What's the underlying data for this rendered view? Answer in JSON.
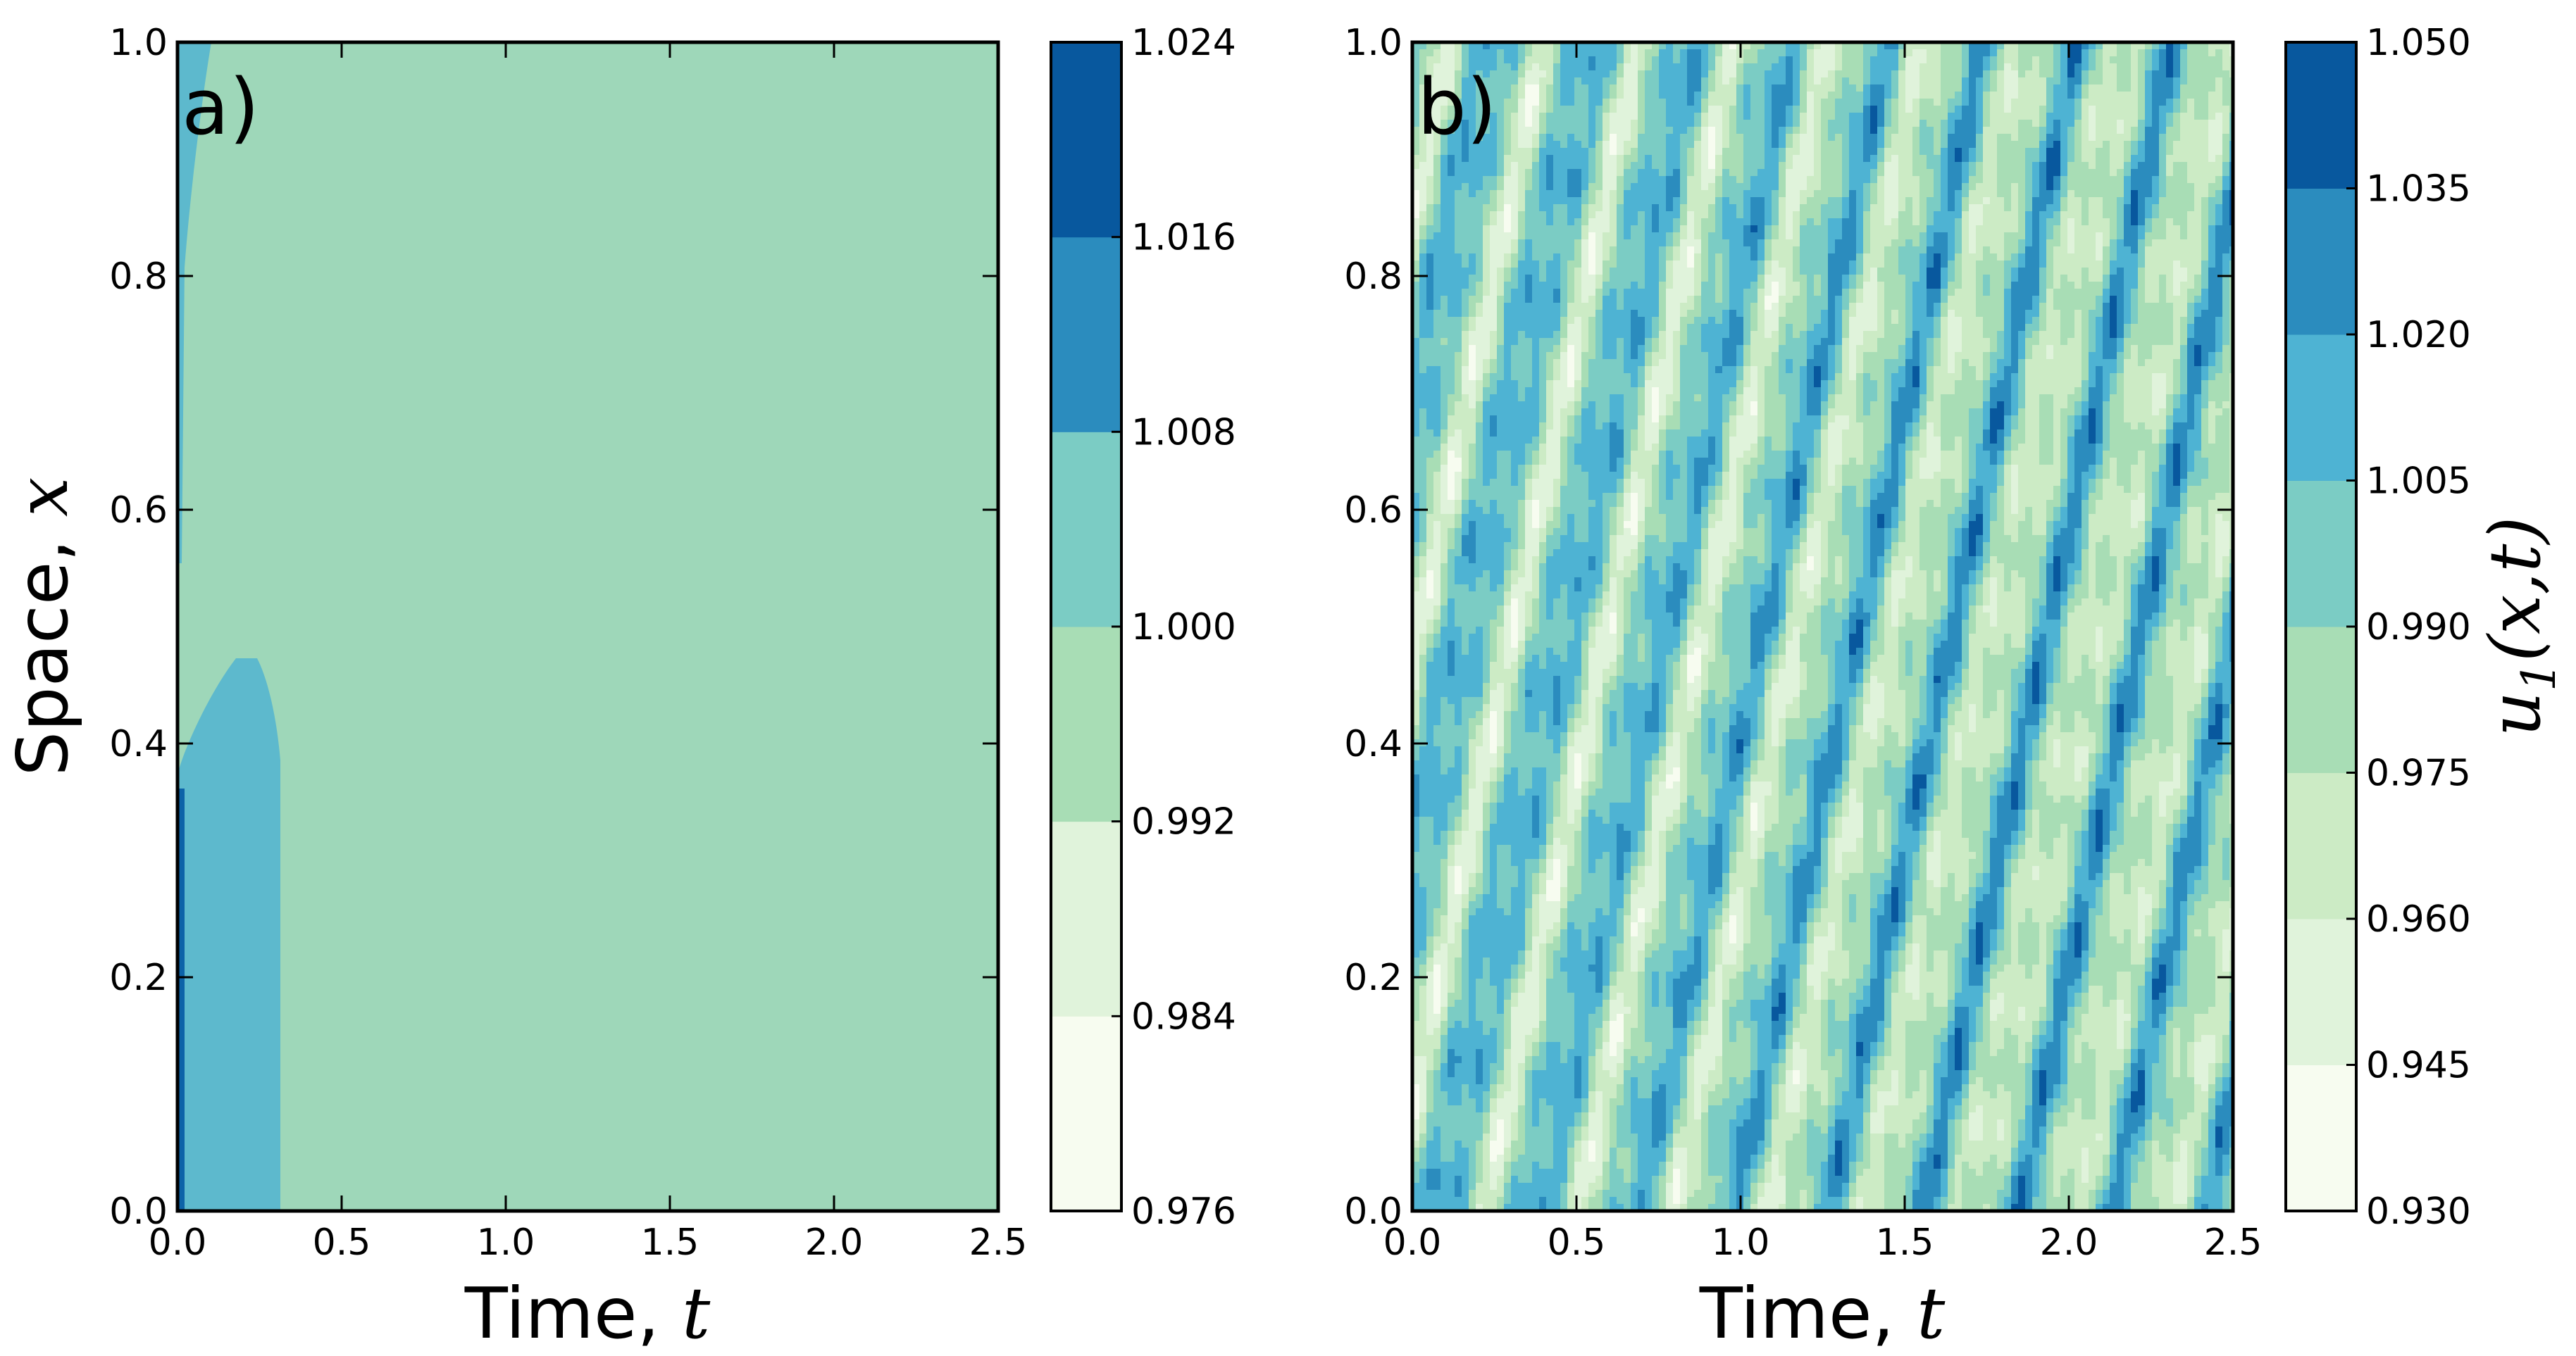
{
  "colors": {
    "levels": [
      "#f7fcf0",
      "#e0f3db",
      "#ccebc5",
      "#a8ddb5",
      "#7bccc4",
      "#4eb3d3",
      "#2b8cbe",
      "#08589e"
    ],
    "panel_a_background": "#9ed7b9",
    "panel_a_blob": "#5db9cd",
    "panel_a_edge": "#0d63a8"
  },
  "chart_data": [
    {
      "type": "heatmap",
      "panel_label": "a)",
      "title": "",
      "xlabel": "Time, t",
      "ylabel": "Space, x",
      "xlim": [
        0.0,
        2.5
      ],
      "ylim": [
        0.0,
        1.0
      ],
      "xticks": [
        "0.0",
        "0.5",
        "1.0",
        "1.5",
        "2.0",
        "2.5"
      ],
      "yticks": [
        "0.0",
        "0.2",
        "0.4",
        "0.6",
        "0.8",
        "1.0"
      ],
      "colorbar": {
        "label": "",
        "levels": [
          "0.976",
          "0.984",
          "0.992",
          "1.000",
          "1.008",
          "1.016",
          "1.024"
        ],
        "range": [
          0.976,
          1.024
        ]
      },
      "description_values": {
        "background_level": 0.996,
        "blob_level": 1.004,
        "blob_time_extent": [
          0.0,
          0.3
        ],
        "blob_space_extent": [
          0.0,
          0.47
        ],
        "edge_level": 1.02
      }
    },
    {
      "type": "heatmap",
      "panel_label": "b)",
      "title": "",
      "xlabel": "Time, t",
      "ylabel": "",
      "xlim": [
        0.0,
        2.5
      ],
      "ylim": [
        0.0,
        1.0
      ],
      "xticks": [
        "0.0",
        "0.5",
        "1.0",
        "1.5",
        "2.0",
        "2.5"
      ],
      "yticks": [
        "0.0",
        "0.2",
        "0.4",
        "0.6",
        "0.8",
        "1.0"
      ],
      "colorbar": {
        "label": "u1(x,t)",
        "label_main": "u",
        "label_sub": "1",
        "label_rest": "(x,t)",
        "levels": [
          "0.930",
          "0.945",
          "0.960",
          "0.975",
          "0.990",
          "1.005",
          "1.020",
          "1.035",
          "1.050"
        ],
        "range": [
          0.93,
          1.05
        ]
      },
      "description_values": {
        "pattern": "diagonal traveling waves",
        "value_min": 0.945,
        "value_max": 1.035
      }
    }
  ]
}
